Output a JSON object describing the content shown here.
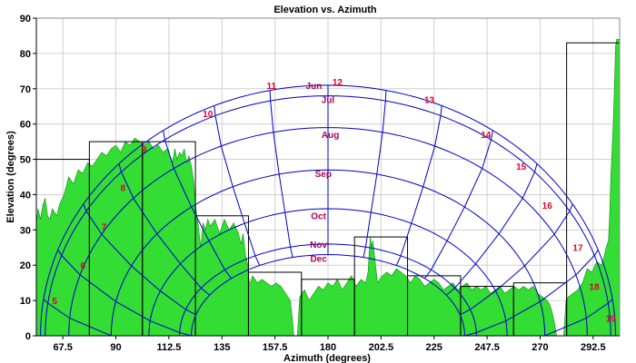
{
  "chart_data": {
    "type": "area",
    "title": "Elevation vs. Azimuth",
    "xlabel": "Azimuth (degrees)",
    "ylabel": "Elevation (degrees)",
    "xlim": [
      56.25,
      303.75
    ],
    "ylim": [
      0,
      90
    ],
    "x_ticks": [
      67.5,
      90,
      112.5,
      135,
      157.5,
      180,
      202.5,
      225,
      247.5,
      270,
      292.5
    ],
    "x_tick_labels": [
      "67.5",
      "90",
      "112.5",
      "135",
      "157.5",
      "180",
      "202.5",
      "225",
      "247.5",
      "270",
      "292.5"
    ],
    "y_ticks": [
      0,
      10,
      20,
      30,
      40,
      50,
      60,
      70,
      80,
      90
    ],
    "y_tick_labels": [
      "0",
      "10",
      "20",
      "30",
      "40",
      "50",
      "60",
      "70",
      "80",
      "90"
    ],
    "grid": true,
    "colors": {
      "terrain_fill": "#33dd33",
      "terrain_edge": "#118811",
      "sun_path": "#0000cc",
      "hour_label": "#e0002c",
      "month_label": "#b00050",
      "grid": "#d0d0d0",
      "blocks": "#000000"
    },
    "horizon_profile": {
      "azimuth": [
        56.25,
        57,
        58,
        59,
        60,
        61,
        62,
        63,
        65,
        66,
        68,
        70,
        72,
        74,
        76,
        78,
        80,
        82,
        84,
        86,
        88,
        90,
        92,
        94,
        96,
        98,
        100,
        102,
        104,
        106,
        108,
        110,
        112,
        114,
        115,
        116,
        117,
        118,
        119,
        120,
        121,
        122,
        123,
        124,
        125,
        126,
        127,
        128,
        129,
        130,
        132,
        134,
        136,
        138,
        140,
        142,
        143,
        144,
        145,
        146,
        146.6,
        147,
        148,
        150,
        152,
        154,
        156,
        158,
        160,
        162,
        164,
        164.5,
        165,
        165.5,
        166,
        167,
        168,
        170,
        172,
        174,
        176,
        178,
        180,
        182,
        184,
        186,
        188,
        190,
        192,
        194,
        196,
        197,
        197.5,
        198,
        198.5,
        199,
        199.5,
        200,
        200.5,
        201,
        202,
        203,
        205,
        207,
        209,
        211,
        213,
        215,
        217,
        219,
        221,
        223,
        225,
        227,
        229,
        231,
        233,
        235,
        237,
        239,
        241,
        243,
        245,
        247,
        249,
        251,
        253,
        255,
        257,
        259,
        261,
        263,
        265,
        267,
        269,
        271,
        273,
        274,
        275,
        276,
        277,
        277.5,
        278,
        280,
        281,
        282,
        284,
        286,
        288,
        290,
        292,
        294,
        296,
        297,
        298,
        299,
        299.5,
        300,
        300.5,
        301,
        301.5,
        302,
        302.5,
        303,
        303.75
      ],
      "elevation": [
        32,
        36,
        33,
        37,
        39,
        34,
        33,
        36,
        34,
        37,
        40,
        45,
        43,
        47,
        46,
        49,
        48,
        50,
        52,
        51,
        53,
        54,
        52,
        55,
        54,
        56,
        55,
        54,
        55,
        53,
        54,
        52,
        53,
        49,
        53,
        50,
        52,
        51,
        53,
        49,
        51,
        48,
        44,
        36,
        31,
        25,
        32,
        30,
        33,
        31,
        33,
        29,
        33,
        30,
        32,
        29,
        26,
        29,
        23,
        20,
        15,
        15,
        17,
        15,
        16,
        15,
        14,
        15,
        14,
        12,
        10,
        7,
        4,
        0,
        0,
        0,
        11,
        13,
        10,
        12,
        14,
        13,
        15,
        14,
        16,
        13,
        15,
        17,
        14,
        16,
        15,
        18,
        24,
        28,
        25,
        27,
        24,
        21,
        18,
        15,
        16,
        17,
        18,
        17,
        19,
        18,
        17,
        15,
        17,
        16,
        14,
        15,
        16,
        15,
        13,
        14,
        15,
        13,
        14,
        15,
        13,
        14,
        13,
        14,
        12,
        13,
        14,
        12,
        13,
        14,
        13,
        14,
        13,
        14,
        12,
        11,
        10,
        9,
        7,
        4,
        0,
        0,
        0,
        0,
        10,
        11,
        12,
        13,
        15,
        19,
        18,
        21,
        20,
        22,
        25,
        27,
        34,
        45,
        52,
        60,
        70,
        82,
        84,
        84,
        84,
        84
      ]
    },
    "blocks": [
      {
        "az_from": 56.25,
        "az_to": 78.75,
        "elevation": 50
      },
      {
        "az_from": 78.75,
        "az_to": 101.25,
        "elevation": 55
      },
      {
        "az_from": 101.25,
        "az_to": 123.75,
        "elevation": 55
      },
      {
        "az_from": 123.75,
        "az_to": 146.25,
        "elevation": 34
      },
      {
        "az_from": 146.25,
        "az_to": 168.75,
        "elevation": 18
      },
      {
        "az_from": 168.75,
        "az_to": 191.25,
        "elevation": 16
      },
      {
        "az_from": 191.25,
        "az_to": 213.75,
        "elevation": 28
      },
      {
        "az_from": 213.75,
        "az_to": 236.25,
        "elevation": 17
      },
      {
        "az_from": 236.25,
        "az_to": 258.75,
        "elevation": 14
      },
      {
        "az_from": 258.75,
        "az_to": 281.25,
        "elevation": 15
      },
      {
        "az_from": 281.25,
        "az_to": 303.75,
        "elevation": 83
      }
    ],
    "month_paths": [
      {
        "name": "Jun",
        "noon_elevation": 71,
        "sunrise_az": 58,
        "sunset_az": 302
      },
      {
        "name": "Jul",
        "noon_elevation": 68,
        "sunrise_az": 60,
        "sunset_az": 300
      },
      {
        "name": "Aug",
        "noon_elevation": 59,
        "sunrise_az": 70,
        "sunset_az": 290
      },
      {
        "name": "Sep",
        "noon_elevation": 47,
        "sunrise_az": 88,
        "sunset_az": 272
      },
      {
        "name": "Oct",
        "noon_elevation": 36,
        "sunrise_az": 104,
        "sunset_az": 256
      },
      {
        "name": "Nov",
        "noon_elevation": 26,
        "sunrise_az": 117,
        "sunset_az": 243
      },
      {
        "name": "Dec",
        "noon_elevation": 23,
        "sunrise_az": 122,
        "sunset_az": 238
      }
    ],
    "hour_labels": [
      {
        "label": "5",
        "az": 64,
        "el": 9
      },
      {
        "label": "6",
        "az": 76,
        "el": 19
      },
      {
        "label": "7",
        "az": 85,
        "el": 30
      },
      {
        "label": "8",
        "az": 93,
        "el": 41
      },
      {
        "label": "9",
        "az": 102,
        "el": 52
      },
      {
        "label": "10",
        "az": 129,
        "el": 62
      },
      {
        "label": "11",
        "az": 156,
        "el": 70
      },
      {
        "label": "12",
        "az": 184,
        "el": 71
      },
      {
        "label": "13",
        "az": 223,
        "el": 66
      },
      {
        "label": "14",
        "az": 247,
        "el": 56
      },
      {
        "label": "15",
        "az": 262,
        "el": 47
      },
      {
        "label": "16",
        "az": 273,
        "el": 36
      },
      {
        "label": "17",
        "az": 286,
        "el": 24
      },
      {
        "label": "18",
        "az": 293,
        "el": 13
      },
      {
        "label": "19",
        "az": 300,
        "el": 4
      }
    ],
    "month_labels": [
      {
        "label": "Jun",
        "az": 174,
        "el": 70
      },
      {
        "label": "Jul",
        "az": 180,
        "el": 66
      },
      {
        "label": "Aug",
        "az": 181,
        "el": 56
      },
      {
        "label": "Sep",
        "az": 178,
        "el": 45
      },
      {
        "label": "Oct",
        "az": 176,
        "el": 33
      },
      {
        "label": "Nov",
        "az": 176,
        "el": 25
      },
      {
        "label": "Dec",
        "az": 176,
        "el": 21
      }
    ]
  }
}
